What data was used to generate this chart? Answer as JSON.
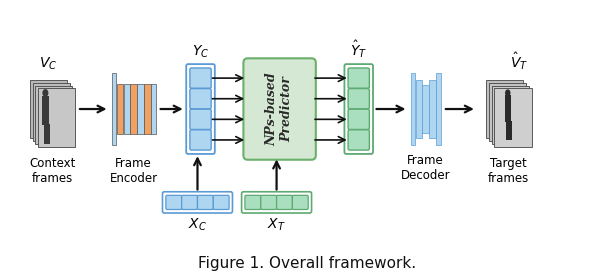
{
  "fig_width": 6.14,
  "fig_height": 2.76,
  "dpi": 100,
  "background": "#ffffff",
  "title": "Figure 1. Overall framework.",
  "title_fontsize": 11,
  "colors": {
    "blue_light": "#AED6F1",
    "blue_border": "#5B9BD5",
    "blue_mid": "#85C1E9",
    "green_light": "#A9DFBF",
    "green_border": "#5DAA72",
    "green_mid": "#7DCEA0",
    "predictor_fill": "#D5E8D4",
    "predictor_border": "#6AAF6A",
    "orange": "#F0A060",
    "arrow": "#111111",
    "gray_dark": "#555555",
    "frame_light": "#C8C8C8",
    "frame_dark": "#888888"
  },
  "labels": {
    "vc": "$V_C$",
    "vt_hat": "$\\hat{V}_T$",
    "yc": "$Y_C$",
    "yt_hat": "$\\hat{Y}_T$",
    "xc": "$X_C$",
    "xt": "$X_T$",
    "context_frames": "Context\nframes",
    "frame_encoder": "Frame\nEncoder",
    "nps_predictor": "NPs-based\nPredictor",
    "frame_decoder": "Frame\nDecoder",
    "target_frames": "Target\nframes"
  },
  "xlim": [
    0,
    10
  ],
  "ylim": [
    0,
    4.2
  ]
}
